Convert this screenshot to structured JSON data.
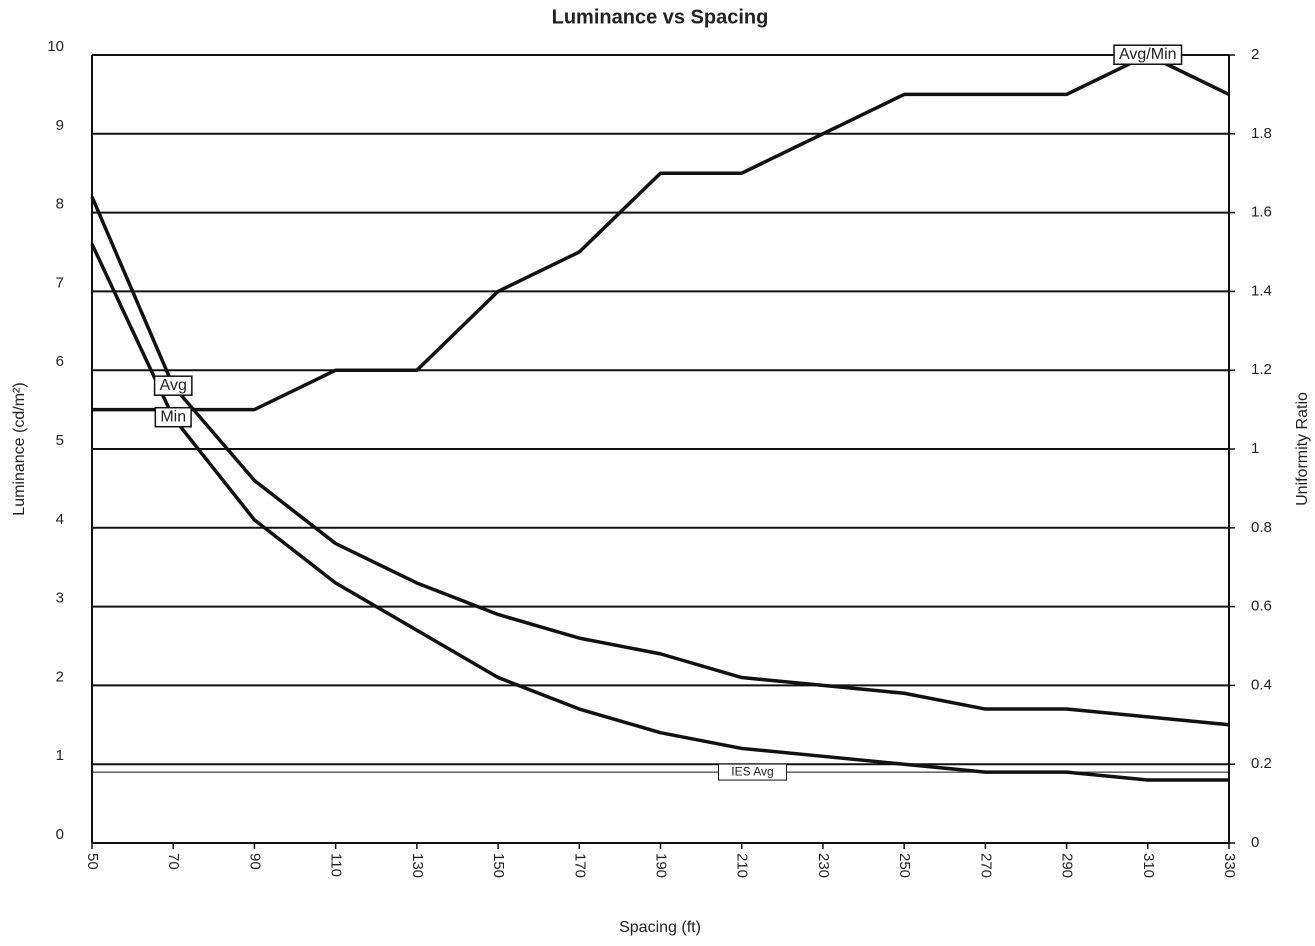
{
  "chart_data": {
    "type": "line",
    "title": "Luminance vs Spacing",
    "x_label": "Spacing (ft)",
    "y_label": "Luminance (cd/m²)",
    "y2_label": "Uniformity Ratio",
    "x": [
      50,
      70,
      90,
      110,
      130,
      150,
      170,
      190,
      210,
      230,
      250,
      270,
      290,
      310,
      330
    ],
    "xlim": [
      50,
      330
    ],
    "xticks": [
      50,
      70,
      90,
      110,
      130,
      150,
      170,
      190,
      210,
      230,
      250,
      270,
      290,
      310,
      330
    ],
    "ylim": [
      0,
      10
    ],
    "yticks": [
      0,
      1,
      2,
      3,
      4,
      5,
      6,
      7,
      8,
      9,
      10
    ],
    "y2lim": [
      0,
      2
    ],
    "y2ticks": [
      0,
      0.2,
      0.4,
      0.6,
      0.8,
      1,
      1.2,
      1.4,
      1.6,
      1.8,
      2
    ],
    "grid": true,
    "series": [
      {
        "name": "Avg",
        "color": "#111111",
        "values": [
          8.2,
          5.8,
          4.6,
          3.8,
          3.3,
          2.9,
          2.6,
          2.4,
          2.1,
          2.0,
          1.9,
          1.7,
          1.7,
          1.6,
          1.5
        ]
      },
      {
        "name": "Min",
        "color": "#111111",
        "values": [
          7.6,
          5.4,
          4.1,
          3.3,
          2.7,
          2.1,
          1.7,
          1.4,
          1.2,
          1.1,
          1.0,
          0.9,
          0.9,
          0.8,
          0.8
        ]
      },
      {
        "name": "Avg/Min",
        "color": "#111111",
        "axis": "y2",
        "values": [
          1.1,
          1.1,
          1.1,
          1.2,
          1.2,
          1.4,
          1.5,
          1.7,
          1.7,
          1.8,
          1.9,
          1.9,
          1.9,
          2.0,
          1.9
        ]
      }
    ],
    "reference_line": {
      "name": "IES Avg",
      "value": 0.9,
      "color": "#111111"
    }
  }
}
